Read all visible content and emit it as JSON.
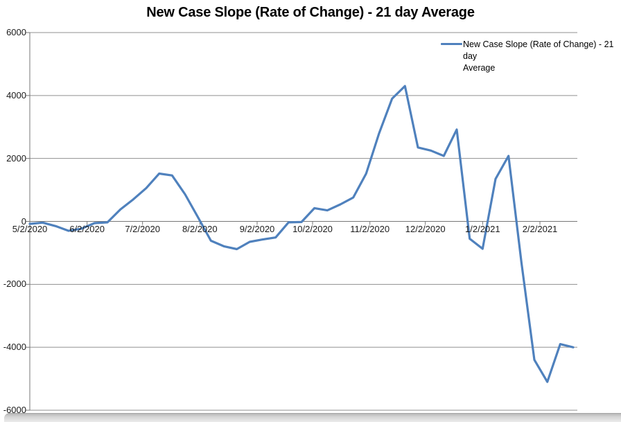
{
  "title": "New Case Slope (Rate of Change) - 21 day Average",
  "legend": {
    "label": "New Case Slope (Rate of Change) - 21 day\nAverage"
  },
  "colors": {
    "line": "#4F81BD",
    "gridline": "#8f8f8f",
    "axis": "#767676",
    "label_text": "#1a1a1a",
    "background": "#ffffff"
  },
  "chart_data": {
    "type": "line",
    "title": "New Case Slope (Rate of Change) - 21 day Average",
    "xlabel": "",
    "ylabel": "",
    "ylim": [
      -6000,
      6000
    ],
    "grid": true,
    "legend_position": "top-right",
    "y_ticks": [
      6000,
      4000,
      2000,
      0,
      -2000,
      -4000,
      -6000
    ],
    "x_tick_labels": [
      "5/2/2020",
      "6/2/2020",
      "7/2/2020",
      "8/2/2020",
      "9/2/2020",
      "10/2/2020",
      "11/2/2020",
      "12/2/2020",
      "1/2/2021",
      "2/2/2021"
    ],
    "series": [
      {
        "name": "New Case Slope (Rate of Change) - 21 day Average",
        "color": "#4F81BD",
        "x": [
          "5/2/2020",
          "5/9/2020",
          "5/16/2020",
          "5/23/2020",
          "5/30/2020",
          "6/6/2020",
          "6/13/2020",
          "6/20/2020",
          "6/27/2020",
          "7/4/2020",
          "7/11/2020",
          "7/18/2020",
          "7/25/2020",
          "8/1/2020",
          "8/8/2020",
          "8/15/2020",
          "8/22/2020",
          "8/29/2020",
          "9/5/2020",
          "9/12/2020",
          "9/19/2020",
          "9/26/2020",
          "10/3/2020",
          "10/10/2020",
          "10/17/2020",
          "10/24/2020",
          "10/31/2020",
          "11/7/2020",
          "11/14/2020",
          "11/21/2020",
          "11/28/2020",
          "12/5/2020",
          "12/12/2020",
          "12/19/2020",
          "12/26/2020",
          "1/2/2021",
          "1/9/2021",
          "1/16/2021",
          "1/23/2021",
          "1/30/2021",
          "2/6/2021",
          "2/13/2021",
          "2/20/2021"
        ],
        "values": [
          -80,
          -40,
          -150,
          -300,
          -230,
          -55,
          -30,
          380,
          700,
          1060,
          1520,
          1460,
          860,
          130,
          -615,
          -790,
          -880,
          -650,
          -575,
          -510,
          -30,
          -20,
          420,
          350,
          540,
          760,
          1520,
          2800,
          3900,
          4300,
          2350,
          2250,
          2080,
          2920,
          -550,
          -870,
          1350,
          2080,
          -1300,
          -4400,
          -5100,
          -3900,
          -4000
        ]
      }
    ]
  }
}
